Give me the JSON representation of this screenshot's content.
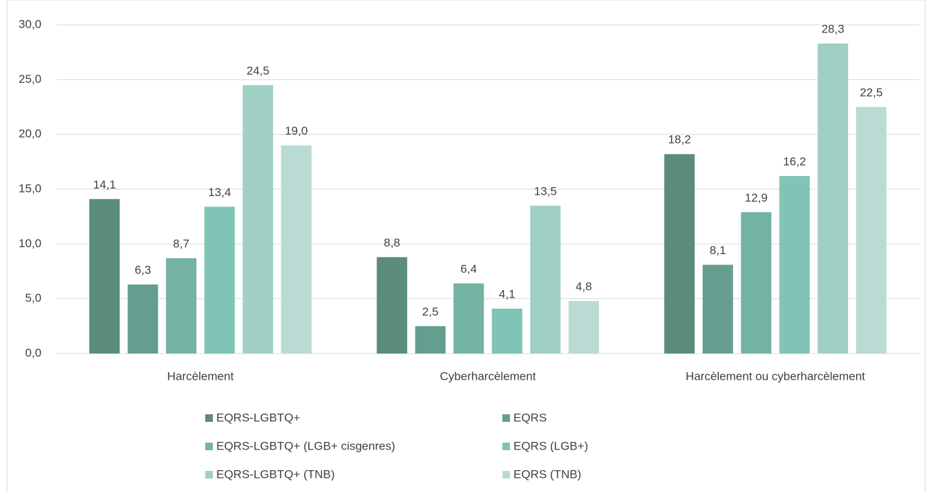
{
  "chart_data": {
    "type": "bar",
    "categories": [
      "Harcèlement",
      "Cyberharcèlement",
      "Harcèlement ou cyberharcèlement"
    ],
    "series": [
      {
        "name": "EQRS-LGBTQ+",
        "color": "#5b8c7e",
        "values": [
          14.1,
          8.8,
          18.2
        ],
        "value_labels": [
          "14,1",
          "8,8",
          "18,2"
        ]
      },
      {
        "name": "EQRS",
        "color": "#659e8f",
        "values": [
          6.3,
          2.5,
          8.1
        ],
        "value_labels": [
          "6,3",
          "2,5",
          "8,1"
        ]
      },
      {
        "name": "EQRS-LGBTQ+ (LGB+ cisgenres)",
        "color": "#74b2a3",
        "values": [
          8.7,
          6.4,
          12.9
        ],
        "value_labels": [
          "8,7",
          "6,4",
          "12,9"
        ]
      },
      {
        "name": "EQRS (LGB+)",
        "color": "#7fc4b4",
        "values": [
          13.4,
          4.1,
          16.2
        ],
        "value_labels": [
          "13,4",
          "4,1",
          "16,2"
        ]
      },
      {
        "name": "EQRS-LGBTQ+ (TNB)",
        "color": "#a0d0c3",
        "values": [
          24.5,
          13.5,
          28.3
        ],
        "value_labels": [
          "24,5",
          "13,5",
          "28,3"
        ]
      },
      {
        "name": "EQRS (TNB)",
        "color": "#badbd3",
        "values": [
          19.0,
          4.8,
          22.5
        ],
        "value_labels": [
          "19,0",
          "4,8",
          "22,5"
        ]
      }
    ],
    "ylim": [
      0,
      30
    ],
    "yticks": [
      {
        "value": 0,
        "label": "0,0"
      },
      {
        "value": 5,
        "label": "5,0"
      },
      {
        "value": 10,
        "label": "10,0"
      },
      {
        "value": 15,
        "label": "15,0"
      },
      {
        "value": 20,
        "label": "20,0"
      },
      {
        "value": 25,
        "label": "25,0"
      },
      {
        "value": 30,
        "label": "30,0"
      }
    ],
    "grid": true,
    "legend": "bottom"
  }
}
